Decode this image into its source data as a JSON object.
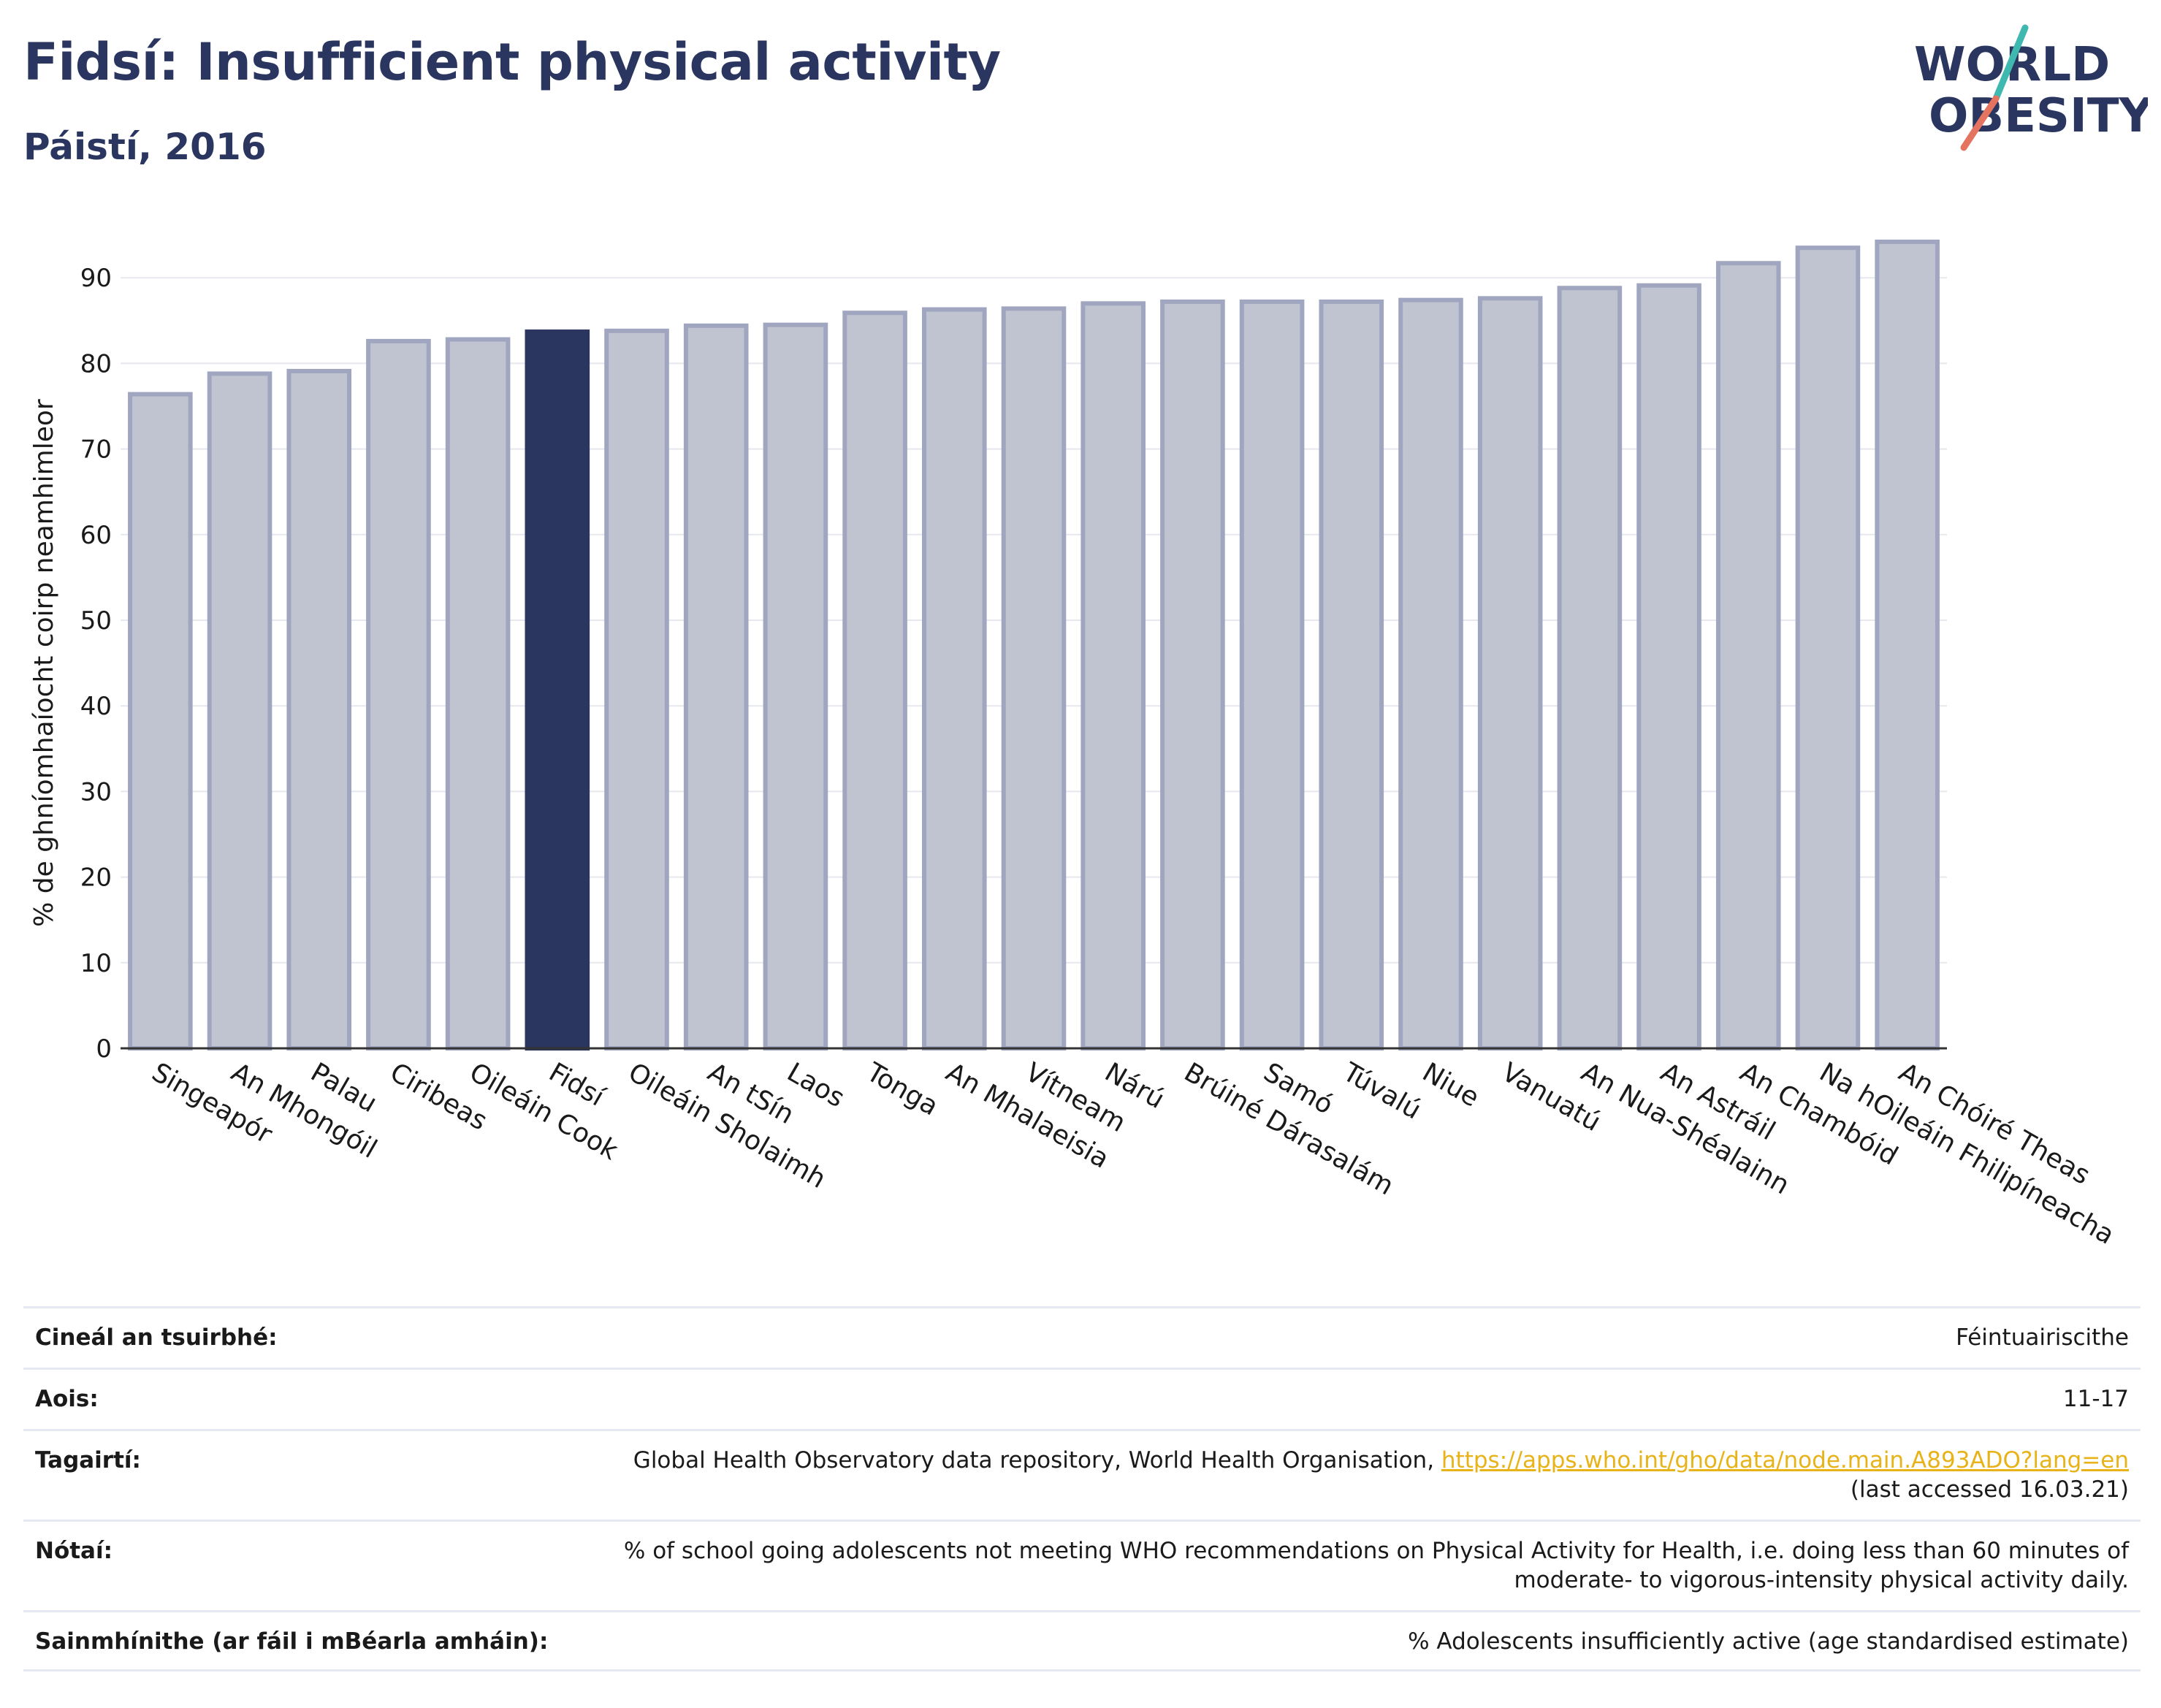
{
  "header": {
    "title": "Fidsí: Insufficient physical activity",
    "subtitle": "Páistí, 2016"
  },
  "logo": {
    "line1": "WORLD",
    "line2": "OBESITY"
  },
  "chart_data": {
    "type": "bar",
    "ylabel": "% de ghníomhaíocht coirp neamhimleor",
    "ylim": [
      0,
      95
    ],
    "yticks": [
      0,
      10,
      20,
      30,
      40,
      50,
      60,
      70,
      80,
      90
    ],
    "grid": true,
    "highlight": "Fidsí",
    "colors": {
      "bar": "#c0c3d0",
      "bar_edge": "#a0a6bf",
      "highlight": "#2b3660",
      "grid": "#e6e8ee"
    },
    "categories": [
      "Singeapór",
      "An Mhongóil",
      "Palau",
      "Ciribeas",
      "Oileáin Cook",
      "Fidsí",
      "Oileáin Sholaimh",
      "An tSín",
      "Laos",
      "Tonga",
      "An Mhalaeisia",
      "Vítneam",
      "Nárú",
      "Brúiné Dárasalám",
      "Samó",
      "Túvalú",
      "Niue",
      "Vanuatú",
      "An Nua-Shéalainn",
      "An Astráil",
      "An Chambóid",
      "Na hOileáin Fhilipíneacha",
      "An Chóiré Theas"
    ],
    "values": [
      76.4,
      78.8,
      79.1,
      82.6,
      82.8,
      83.7,
      83.8,
      84.4,
      84.5,
      85.9,
      86.3,
      86.4,
      87.0,
      87.2,
      87.2,
      87.2,
      87.4,
      87.6,
      88.8,
      89.1,
      91.7,
      93.5,
      94.2
    ]
  },
  "info": {
    "survey_type": {
      "label": "Cineál an tsuirbhé:",
      "value": "Féintuairiscithe"
    },
    "age": {
      "label": "Aois:",
      "value": "11-17"
    },
    "references": {
      "label": "Tagairtí:",
      "text": "Global Health Observatory data repository, World Health Organisation,",
      "link": "https://apps.who.int/gho/data/node.main.A893ADO?lang=en",
      "accessed": "(last accessed 16.03.21)"
    },
    "notes": {
      "label": "Nótaí:",
      "line1": "% of school going adolescents not meeting WHO recommendations on Physical Activity for Health, i.e. doing less than 60 minutes of",
      "line2": "moderate- to vigorous-intensity physical activity daily."
    },
    "definitions": {
      "label": "Sainmhínithe (ar fáil i mBéarla amháin):",
      "value": "% Adolescents insufficiently active (age standardised estimate)"
    }
  }
}
